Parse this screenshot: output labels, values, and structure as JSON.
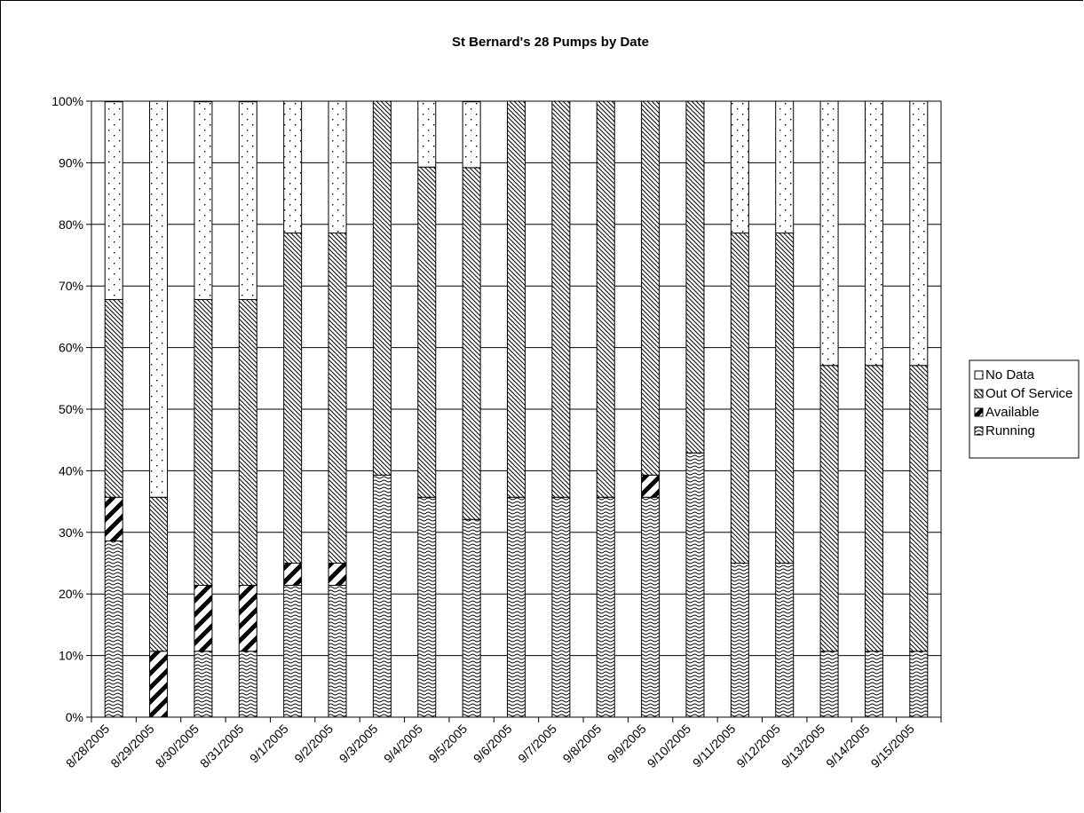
{
  "chart_data": {
    "type": "bar",
    "stacked": true,
    "title": "St Bernard's 28 Pumps by Date",
    "xlabel": "",
    "ylabel": "",
    "ylim": [
      0,
      100
    ],
    "y_ticks": [
      "0%",
      "10%",
      "20%",
      "30%",
      "40%",
      "50%",
      "60%",
      "70%",
      "80%",
      "90%",
      "100%"
    ],
    "grid": true,
    "legend_position": "right",
    "categories": [
      "8/28/2005",
      "8/29/2005",
      "8/30/2005",
      "8/31/2005",
      "9/1/2005",
      "9/2/2005",
      "9/3/2005",
      "9/4/2005",
      "9/5/2005",
      "9/6/2005",
      "9/7/2005",
      "9/8/2005",
      "9/9/2005",
      "9/10/2005",
      "9/11/2005",
      "9/12/2005",
      "9/13/2005",
      "9/14/2005",
      "9/15/2005"
    ],
    "series": [
      {
        "name": "Running",
        "pattern": "wave",
        "values": [
          28.6,
          0,
          10.7,
          10.7,
          21.4,
          21.4,
          39.3,
          35.7,
          32.1,
          35.7,
          35.7,
          35.7,
          35.7,
          42.9,
          25.0,
          25.0,
          10.7,
          10.7,
          10.7
        ]
      },
      {
        "name": "Available",
        "pattern": "thick-diagonal",
        "values": [
          7.1,
          10.7,
          10.7,
          10.7,
          3.6,
          3.6,
          0,
          0,
          0,
          0,
          0,
          0,
          3.6,
          0,
          0,
          0,
          0,
          0,
          0
        ]
      },
      {
        "name": "Out Of Service",
        "pattern": "diagonal-lines",
        "values": [
          32.1,
          25.0,
          46.4,
          46.4,
          53.6,
          53.6,
          60.7,
          53.6,
          57.1,
          64.3,
          64.3,
          64.3,
          60.7,
          57.1,
          53.6,
          53.6,
          46.4,
          46.4,
          46.4
        ]
      },
      {
        "name": "No Data",
        "pattern": "dots",
        "values": [
          32.1,
          64.3,
          32.1,
          32.1,
          21.4,
          21.4,
          0,
          10.7,
          10.7,
          0,
          0,
          0,
          0,
          0,
          21.4,
          21.4,
          42.9,
          42.9,
          42.9
        ]
      }
    ],
    "legend_order": [
      "No Data",
      "Out Of Service",
      "Available",
      "Running"
    ]
  }
}
